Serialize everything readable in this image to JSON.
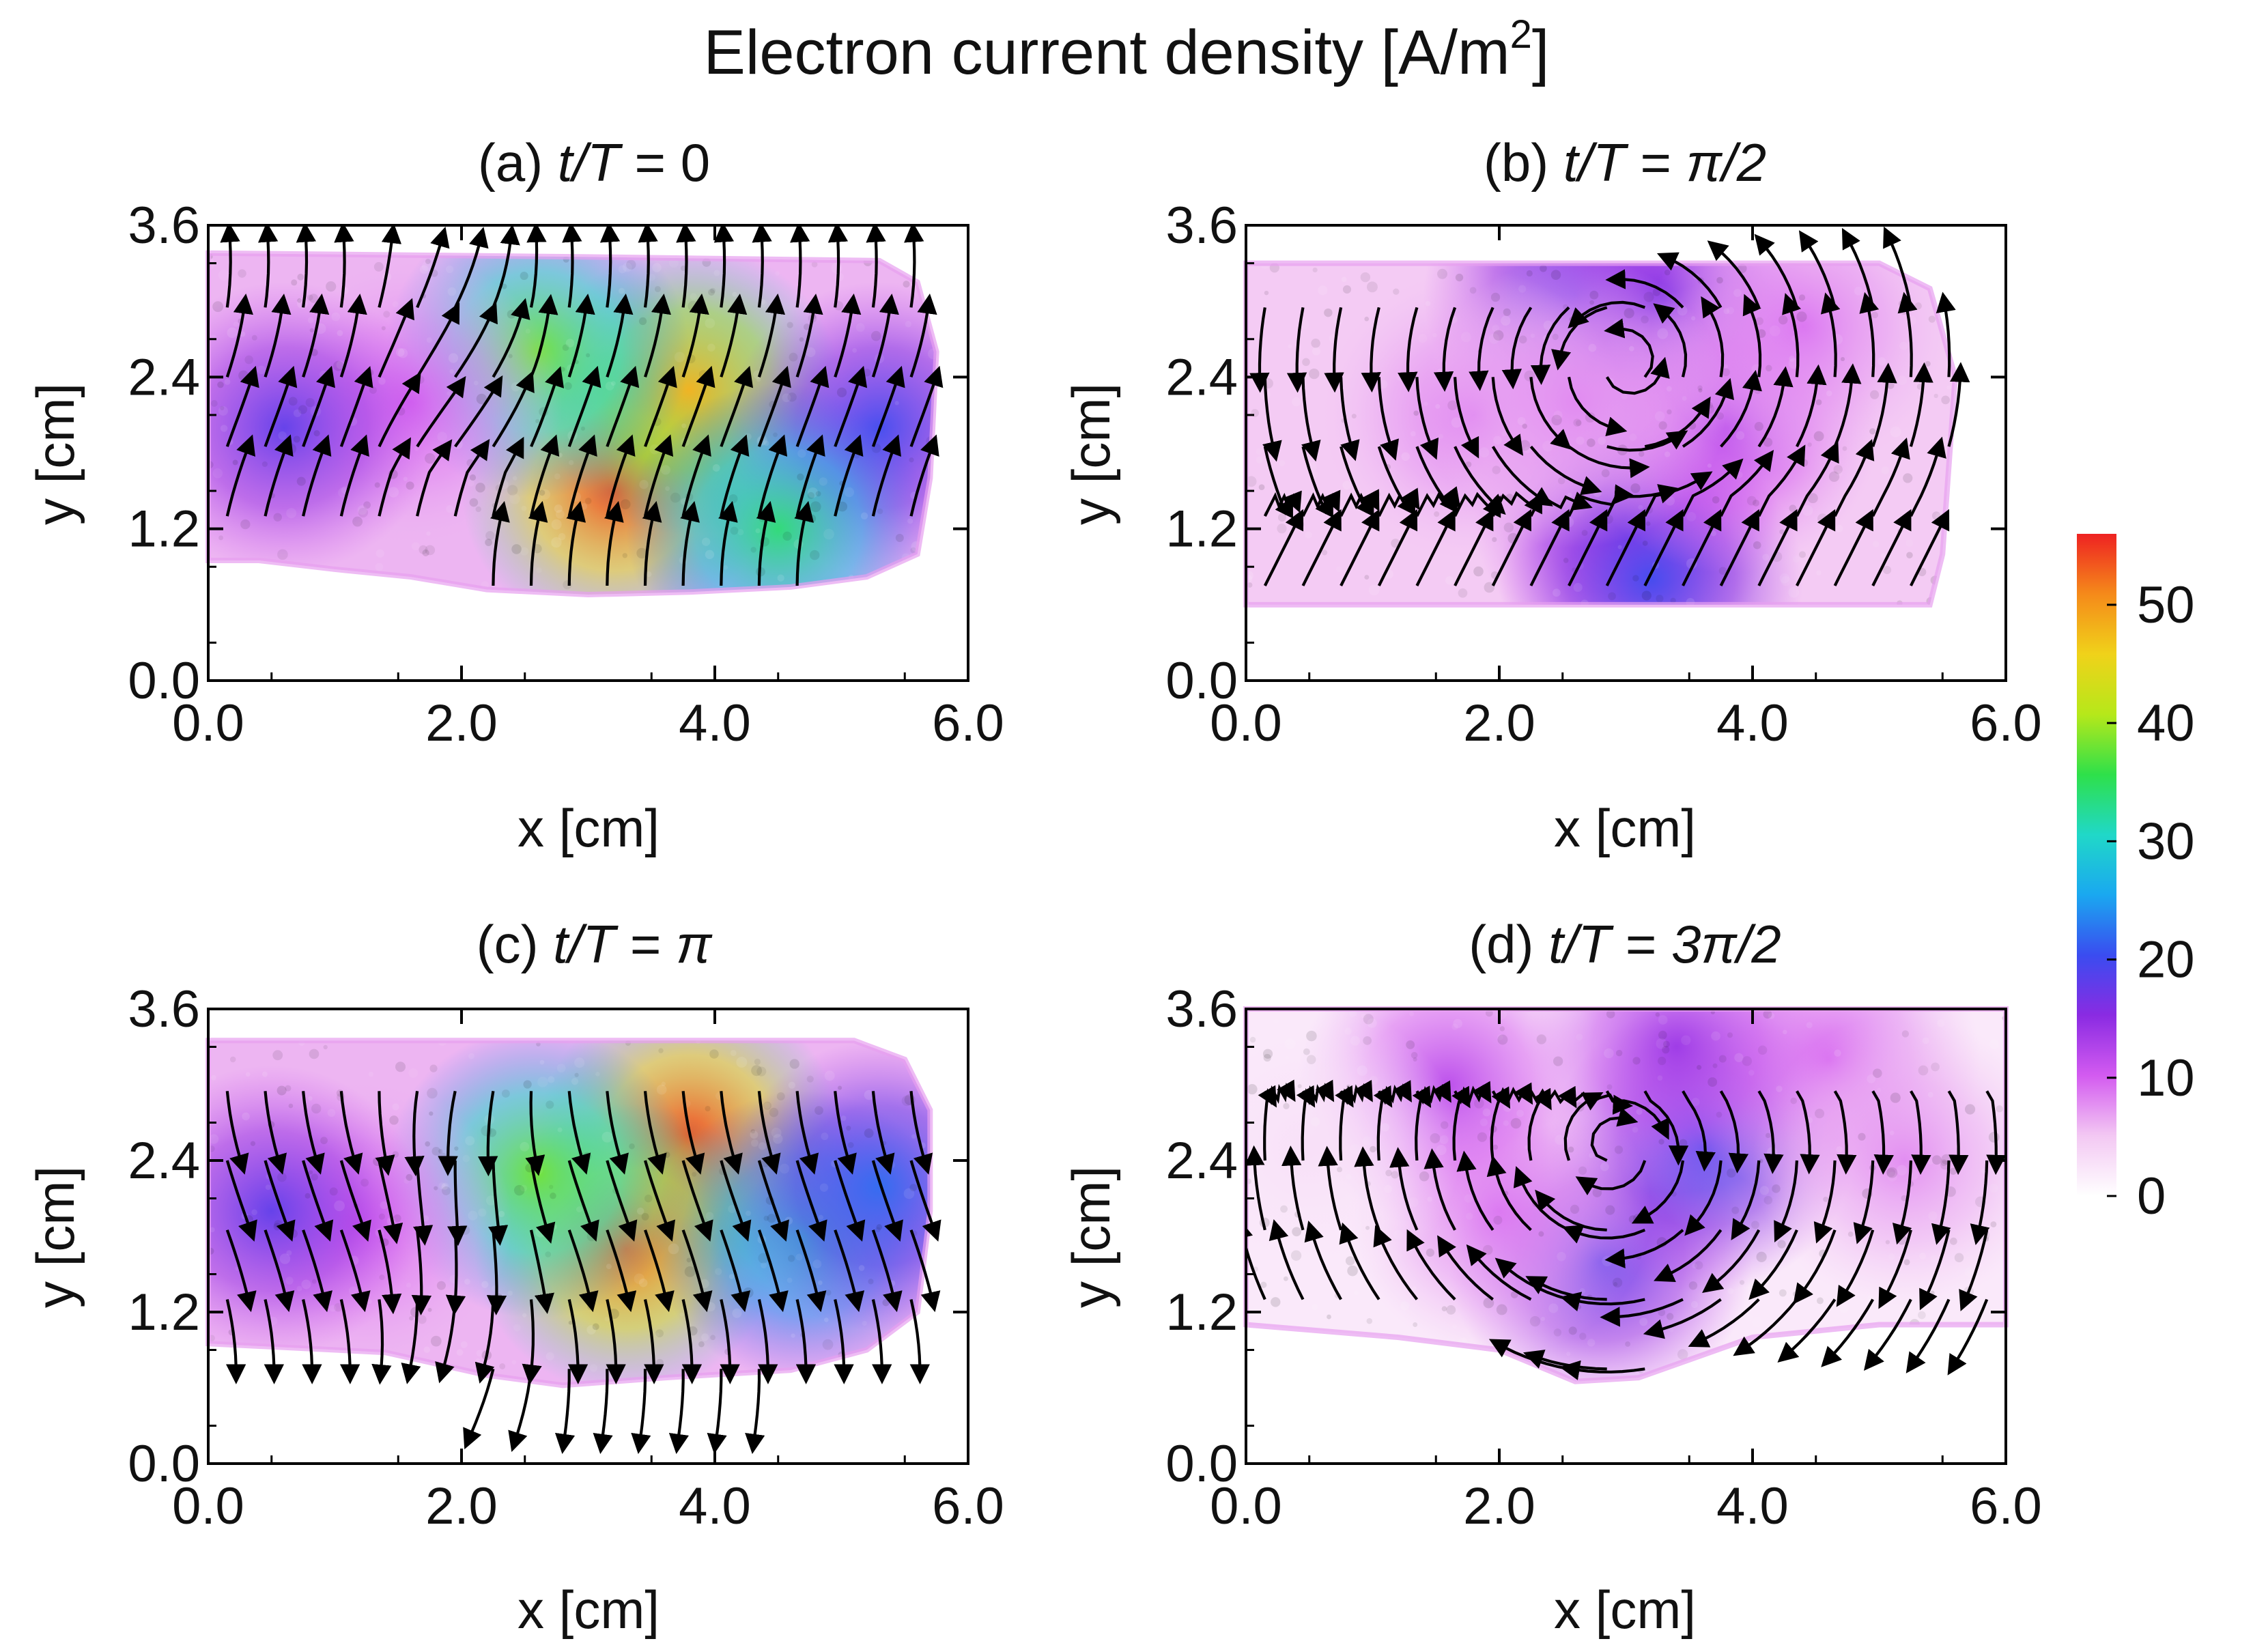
{
  "figure": {
    "title_main": "Electron current density [A/m",
    "title_sup": "2",
    "title_end": "]"
  },
  "chart_data": [
    {
      "type": "heatmap",
      "panel": "(a)",
      "title_prefix": "(a) ",
      "title_var": "t/T",
      "title_eq": " = ",
      "title_value": "0",
      "xlabel": "x [cm]",
      "ylabel": "y [cm]",
      "xlim": [
        0.0,
        6.0
      ],
      "ylim": [
        0.0,
        3.6
      ],
      "xticks": [
        "0.0",
        "2.0",
        "4.0",
        "6.0"
      ],
      "yticks": [
        "0.0",
        "1.2",
        "2.4",
        "3.6"
      ],
      "region": [
        [
          0.0,
          0.95
        ],
        [
          0.4,
          0.95
        ],
        [
          1.0,
          0.88
        ],
        [
          1.6,
          0.82
        ],
        [
          2.2,
          0.72
        ],
        [
          3.0,
          0.68
        ],
        [
          3.8,
          0.7
        ],
        [
          4.6,
          0.74
        ],
        [
          5.2,
          0.82
        ],
        [
          5.6,
          1.0
        ],
        [
          5.7,
          1.6
        ],
        [
          5.75,
          2.6
        ],
        [
          5.6,
          3.15
        ],
        [
          5.3,
          3.32
        ],
        [
          3.0,
          3.35
        ],
        [
          0.0,
          3.38
        ]
      ],
      "hotspots": [
        [
          3.2,
          1.5,
          54
        ],
        [
          3.8,
          2.3,
          48
        ],
        [
          2.6,
          2.6,
          38
        ],
        [
          1.6,
          2.2,
          10
        ],
        [
          0.6,
          2.0,
          18
        ],
        [
          5.3,
          2.0,
          20
        ],
        [
          4.5,
          1.2,
          34
        ]
      ],
      "field": "up_curl"
    },
    {
      "type": "heatmap",
      "panel": "(b)",
      "title_prefix": "(b) ",
      "title_var": "t/T",
      "title_eq": " = ",
      "title_value": "π/2",
      "xlabel": "x [cm]",
      "ylabel": "y [cm]",
      "xlim": [
        0.0,
        6.0
      ],
      "ylim": [
        0.0,
        3.6
      ],
      "xticks": [
        "0.0",
        "2.0",
        "4.0",
        "6.0"
      ],
      "yticks": [
        "0.0",
        "1.2",
        "2.4",
        "3.6"
      ],
      "region": [
        [
          0.0,
          0.6
        ],
        [
          5.4,
          0.6
        ],
        [
          5.5,
          1.0
        ],
        [
          5.6,
          2.4
        ],
        [
          5.4,
          3.1
        ],
        [
          5.0,
          3.3
        ],
        [
          0.0,
          3.3
        ]
      ],
      "hotspots": [
        [
          2.6,
          3.05,
          18
        ],
        [
          3.3,
          3.0,
          16
        ],
        [
          3.0,
          1.3,
          16
        ],
        [
          3.2,
          0.8,
          20
        ],
        [
          3.8,
          2.0,
          12
        ],
        [
          1.8,
          2.1,
          9
        ],
        [
          4.4,
          2.8,
          9
        ],
        [
          2.6,
          2.2,
          8
        ]
      ],
      "field": "swirl"
    },
    {
      "type": "heatmap",
      "panel": "(c)",
      "title_prefix": "(c) ",
      "title_var": "t/T",
      "title_eq": " = ",
      "title_value": "π",
      "xlabel": "x [cm]",
      "ylabel": "y [cm]",
      "xlim": [
        0.0,
        6.0
      ],
      "ylim": [
        0.0,
        3.6
      ],
      "xticks": [
        "0.0",
        "2.0",
        "4.0",
        "6.0"
      ],
      "yticks": [
        "0.0",
        "1.2",
        "2.4",
        "3.6"
      ],
      "region": [
        [
          0.0,
          0.95
        ],
        [
          0.6,
          0.92
        ],
        [
          1.4,
          0.88
        ],
        [
          2.2,
          0.7
        ],
        [
          2.8,
          0.62
        ],
        [
          3.6,
          0.68
        ],
        [
          4.6,
          0.74
        ],
        [
          5.2,
          0.9
        ],
        [
          5.6,
          1.2
        ],
        [
          5.7,
          2.0
        ],
        [
          5.7,
          2.8
        ],
        [
          5.5,
          3.2
        ],
        [
          5.1,
          3.35
        ],
        [
          3.0,
          3.35
        ],
        [
          0.0,
          3.35
        ]
      ],
      "hotspots": [
        [
          3.8,
          2.6,
          54
        ],
        [
          3.3,
          1.7,
          52
        ],
        [
          2.6,
          2.3,
          38
        ],
        [
          1.2,
          1.9,
          10
        ],
        [
          0.5,
          2.0,
          18
        ],
        [
          4.7,
          1.8,
          30
        ],
        [
          5.3,
          2.2,
          22
        ]
      ],
      "field": "down_curl"
    },
    {
      "type": "heatmap",
      "panel": "(d)",
      "title_prefix": "(d) ",
      "title_var": "t/T",
      "title_eq": " = ",
      "title_value": "3π/2",
      "xlabel": "x [cm]",
      "ylabel": "y [cm]",
      "xlim": [
        0.0,
        6.0
      ],
      "ylim": [
        0.0,
        3.6
      ],
      "xticks": [
        "0.0",
        "2.0",
        "4.0",
        "6.0"
      ],
      "yticks": [
        "0.0",
        "1.2",
        "2.4",
        "3.6"
      ],
      "region": [
        [
          0.0,
          1.1
        ],
        [
          1.2,
          1.0
        ],
        [
          2.0,
          0.9
        ],
        [
          2.6,
          0.65
        ],
        [
          3.1,
          0.68
        ],
        [
          4.0,
          1.0
        ],
        [
          5.0,
          1.1
        ],
        [
          6.0,
          1.1
        ],
        [
          6.0,
          3.6
        ],
        [
          0.0,
          3.6
        ]
      ],
      "hotspots": [
        [
          2.8,
          1.6,
          18
        ],
        [
          3.6,
          2.5,
          20
        ],
        [
          2.0,
          2.0,
          9
        ],
        [
          1.6,
          3.0,
          12
        ],
        [
          4.6,
          3.2,
          10
        ],
        [
          5.2,
          2.4,
          8
        ],
        [
          3.4,
          3.3,
          14
        ],
        [
          0.5,
          2.5,
          3
        ]
      ],
      "field": "swirl_d"
    }
  ],
  "colorbar": {
    "ticks": [
      "0",
      "10",
      "20",
      "30",
      "40",
      "50"
    ],
    "tick_values": [
      0,
      10,
      20,
      30,
      40,
      50
    ],
    "range": [
      0,
      56
    ],
    "colors": [
      "#ffffff",
      "#f3c8f3",
      "#d35bf0",
      "#8a2be2",
      "#3a4cf0",
      "#1aa8f0",
      "#20d8c8",
      "#2ee04a",
      "#b6e81a",
      "#f0d21a",
      "#f58a1a",
      "#ee2222"
    ]
  }
}
